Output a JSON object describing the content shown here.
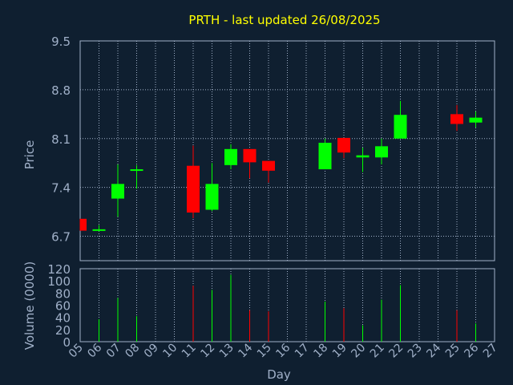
{
  "chart_data": {
    "type": "candlestick",
    "title": "PRTH - last updated 26/08/2025",
    "price_panel": {
      "ylabel": "Price",
      "ylim": [
        6.35,
        9.5
      ],
      "yticks": [
        6.7,
        7.4,
        8.1,
        8.8,
        9.5
      ],
      "ytick_labels": [
        "6.7",
        "7.4",
        "8.1",
        "8.8",
        "9.5"
      ]
    },
    "volume_panel": {
      "ylabel": "Volume (0000)",
      "ylim": [
        0,
        120
      ],
      "yticks": [
        0,
        20,
        40,
        60,
        80,
        100,
        120
      ],
      "ytick_labels": [
        "0",
        "20",
        "40",
        "60",
        "80",
        "100",
        "120"
      ]
    },
    "xlabel": "Day",
    "xlim": [
      5,
      27
    ],
    "x_tick_labels": [
      "05",
      "06",
      "07",
      "08",
      "09",
      "10",
      "11",
      "12",
      "13",
      "14",
      "15",
      "16",
      "17",
      "18",
      "19",
      "20",
      "21",
      "22",
      "23",
      "24",
      "25",
      "26",
      "27"
    ],
    "colors": {
      "up": "#00ff00",
      "down": "#ff0000"
    },
    "candles": [
      {
        "day": 5,
        "open": 6.95,
        "high": 6.95,
        "low": 6.78,
        "close": 6.78,
        "volume": 0
      },
      {
        "day": 6,
        "open": 6.78,
        "high": 6.86,
        "low": 6.77,
        "close": 6.8,
        "volume": 37
      },
      {
        "day": 7,
        "open": 7.24,
        "high": 7.73,
        "low": 6.98,
        "close": 7.45,
        "volume": 72
      },
      {
        "day": 8,
        "open": 7.64,
        "high": 7.72,
        "low": 7.38,
        "close": 7.66,
        "volume": 42
      },
      {
        "day": 11,
        "open": 7.71,
        "high": 8.0,
        "low": 6.96,
        "close": 7.04,
        "volume": 92
      },
      {
        "day": 12,
        "open": 7.08,
        "high": 7.75,
        "low": 7.06,
        "close": 7.45,
        "volume": 85
      },
      {
        "day": 13,
        "open": 7.72,
        "high": 8.02,
        "low": 7.66,
        "close": 7.95,
        "volume": 110
      },
      {
        "day": 14,
        "open": 7.95,
        "high": 7.95,
        "low": 7.53,
        "close": 7.76,
        "volume": 52
      },
      {
        "day": 15,
        "open": 7.78,
        "high": 7.78,
        "low": 7.47,
        "close": 7.64,
        "volume": 50
      },
      {
        "day": 18,
        "open": 7.66,
        "high": 8.1,
        "low": 7.66,
        "close": 8.04,
        "volume": 66
      },
      {
        "day": 19,
        "open": 8.11,
        "high": 8.11,
        "low": 7.82,
        "close": 7.9,
        "volume": 55
      },
      {
        "day": 20,
        "open": 7.83,
        "high": 7.97,
        "low": 7.62,
        "close": 7.86,
        "volume": 27
      },
      {
        "day": 21,
        "open": 7.83,
        "high": 8.1,
        "low": 7.73,
        "close": 7.99,
        "volume": 69
      },
      {
        "day": 22,
        "open": 8.1,
        "high": 8.64,
        "low": 8.1,
        "close": 8.44,
        "volume": 93
      },
      {
        "day": 25,
        "open": 8.45,
        "high": 8.58,
        "low": 8.21,
        "close": 8.31,
        "volume": 52
      },
      {
        "day": 26,
        "open": 8.33,
        "high": 8.49,
        "low": 8.26,
        "close": 8.4,
        "volume": 30
      }
    ]
  }
}
